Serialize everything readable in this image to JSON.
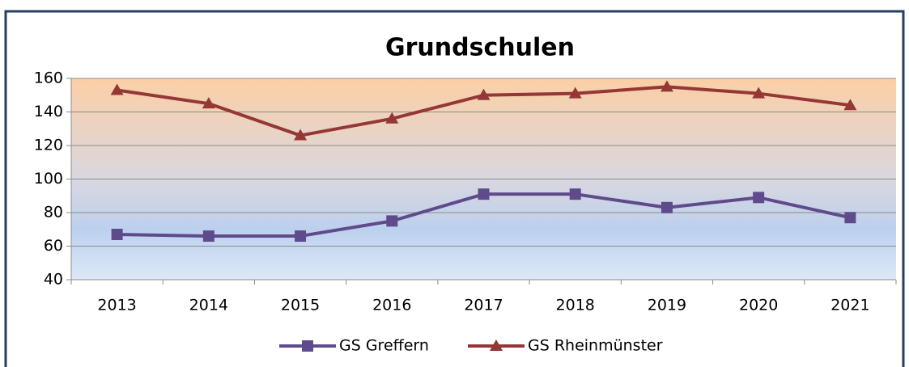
{
  "chart_data": {
    "type": "line",
    "title": "Grundschulen",
    "categories": [
      "2013",
      "2014",
      "2015",
      "2016",
      "2017",
      "2018",
      "2019",
      "2020",
      "2021"
    ],
    "series": [
      {
        "name": "GS Greffern",
        "color": "#5f4b8b",
        "marker": "square",
        "values": [
          67,
          66,
          66,
          75,
          91,
          91,
          83,
          89,
          77
        ]
      },
      {
        "name": "GS Rheinmünster",
        "color": "#953735",
        "marker": "triangle",
        "values": [
          153,
          145,
          126,
          136,
          150,
          151,
          155,
          151,
          144
        ]
      }
    ],
    "ylim": [
      40,
      160
    ],
    "yticks": [
      40,
      60,
      80,
      100,
      120,
      140,
      160
    ],
    "grid": true,
    "legend": "bottom"
  }
}
